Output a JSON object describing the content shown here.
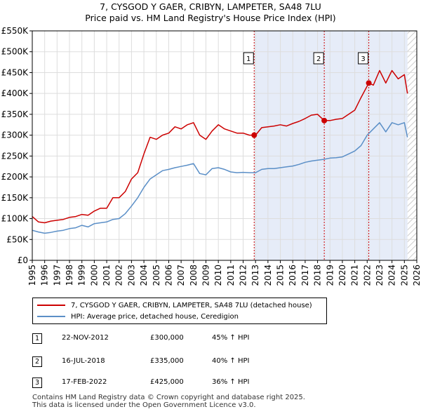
{
  "page": {
    "title_line1": "7, CYSGOD Y GAER, CRIBYN, LAMPETER, SA48 7LU",
    "title_line2": "Price paid vs. HM Land Registry's House Price Index (HPI)",
    "footer_line1": "Contains HM Land Registry data © Crown copyright and database right 2025.",
    "footer_line2": "This data is licensed under the Open Government Licence v3.0."
  },
  "colors": {
    "property": "#cc0000",
    "hpi": "#5b8fc7",
    "shade": "#e6ecf8",
    "grid": "#dddddd",
    "hatch": "#bbbbbb"
  },
  "legend": {
    "property_label": "7, CYSGOD Y GAER, CRIBYN, LAMPETER, SA48 7LU (detached house)",
    "hpi_label": "HPI: Average price, detached house, Ceredigion"
  },
  "sales": [
    {
      "num": "1",
      "date": "22-NOV-2012",
      "price": "£300,000",
      "hpi": "45% ↑ HPI"
    },
    {
      "num": "2",
      "date": "16-JUL-2018",
      "price": "£335,000",
      "hpi": "40% ↑ HPI"
    },
    {
      "num": "3",
      "date": "17-FEB-2022",
      "price": "£425,000",
      "hpi": "36% ↑ HPI"
    }
  ],
  "chart_data": {
    "type": "line",
    "title": "7, CYSGOD Y GAER, CRIBYN, LAMPETER, SA48 7LU — Price paid vs. HM Land Registry's House Price Index (HPI)",
    "xlabel": "",
    "ylabel": "",
    "xlim": [
      1995,
      2026
    ],
    "ylim": [
      0,
      550000
    ],
    "x_ticks": [
      1995,
      1996,
      1997,
      1998,
      1999,
      2000,
      2001,
      2002,
      2003,
      2004,
      2005,
      2006,
      2007,
      2008,
      2009,
      2010,
      2011,
      2012,
      2013,
      2014,
      2015,
      2016,
      2017,
      2018,
      2019,
      2020,
      2021,
      2022,
      2023,
      2024,
      2025,
      2026
    ],
    "y_ticks": [
      0,
      50000,
      100000,
      150000,
      200000,
      250000,
      300000,
      350000,
      400000,
      450000,
      500000,
      550000
    ],
    "y_tick_labels": [
      "£0",
      "£50K",
      "£100K",
      "£150K",
      "£200K",
      "£250K",
      "£300K",
      "£350K",
      "£400K",
      "£450K",
      "£500K",
      "£550K"
    ],
    "shaded_span": [
      2012.9,
      2025.25
    ],
    "hatched_from": 2025.25,
    "sale_markers": [
      {
        "label": "1",
        "x": 2012.89,
        "y": 300000
      },
      {
        "label": "2",
        "x": 2018.54,
        "y": 335000
      },
      {
        "label": "3",
        "x": 2022.13,
        "y": 425000
      }
    ],
    "series": [
      {
        "name": "7, CYSGOD Y GAER, CRIBYN, LAMPETER, SA48 7LU (detached house)",
        "x": [
          1995.0,
          1995.5,
          1996.0,
          1996.5,
          1997.0,
          1997.5,
          1998.0,
          1998.5,
          1999.0,
          1999.5,
          2000.0,
          2000.5,
          2001.0,
          2001.5,
          2002.0,
          2002.5,
          2003.0,
          2003.5,
          2004.0,
          2004.5,
          2005.0,
          2005.5,
          2006.0,
          2006.5,
          2007.0,
          2007.5,
          2008.0,
          2008.5,
          2009.0,
          2009.5,
          2010.0,
          2010.5,
          2011.0,
          2011.5,
          2012.0,
          2012.5,
          2012.89,
          2013.0,
          2013.5,
          2014.0,
          2014.5,
          2015.0,
          2015.5,
          2016.0,
          2016.5,
          2017.0,
          2017.5,
          2018.0,
          2018.54,
          2019.0,
          2019.5,
          2020.0,
          2020.5,
          2021.0,
          2021.5,
          2022.13,
          2022.5,
          2023.0,
          2023.5,
          2024.0,
          2024.5,
          2025.0,
          2025.25
        ],
        "values": [
          105000,
          92000,
          90000,
          94000,
          96000,
          98000,
          103000,
          105000,
          110000,
          108000,
          118000,
          125000,
          125000,
          150000,
          150000,
          165000,
          195000,
          210000,
          255000,
          295000,
          290000,
          300000,
          305000,
          320000,
          315000,
          325000,
          330000,
          300000,
          290000,
          310000,
          325000,
          315000,
          310000,
          305000,
          305000,
          300000,
          300000,
          300000,
          318000,
          320000,
          322000,
          325000,
          322000,
          328000,
          333000,
          340000,
          348000,
          350000,
          335000,
          335000,
          338000,
          340000,
          350000,
          360000,
          390000,
          425000,
          420000,
          455000,
          425000,
          455000,
          435000,
          445000,
          400000
        ]
      },
      {
        "name": "HPI: Average price, detached house, Ceredigion",
        "x": [
          1995.0,
          1995.5,
          1996.0,
          1996.5,
          1997.0,
          1997.5,
          1998.0,
          1998.5,
          1999.0,
          1999.5,
          2000.0,
          2000.5,
          2001.0,
          2001.5,
          2002.0,
          2002.5,
          2003.0,
          2003.5,
          2004.0,
          2004.5,
          2005.0,
          2005.5,
          2006.0,
          2006.5,
          2007.0,
          2007.5,
          2008.0,
          2008.5,
          2009.0,
          2009.5,
          2010.0,
          2010.5,
          2011.0,
          2011.5,
          2012.0,
          2012.5,
          2013.0,
          2013.5,
          2014.0,
          2014.5,
          2015.0,
          2015.5,
          2016.0,
          2016.5,
          2017.0,
          2017.5,
          2018.0,
          2018.5,
          2019.0,
          2019.5,
          2020.0,
          2020.5,
          2021.0,
          2021.5,
          2022.0,
          2022.5,
          2023.0,
          2023.5,
          2024.0,
          2024.5,
          2025.0,
          2025.25
        ],
        "values": [
          72000,
          68000,
          65000,
          67000,
          70000,
          72000,
          76000,
          78000,
          84000,
          80000,
          88000,
          90000,
          92000,
          98000,
          100000,
          112000,
          130000,
          150000,
          175000,
          195000,
          205000,
          215000,
          218000,
          222000,
          225000,
          228000,
          232000,
          208000,
          205000,
          220000,
          222000,
          218000,
          212000,
          210000,
          211000,
          210000,
          210000,
          218000,
          220000,
          220000,
          222000,
          224000,
          226000,
          230000,
          235000,
          238000,
          240000,
          242000,
          245000,
          246000,
          248000,
          255000,
          262000,
          275000,
          300000,
          315000,
          330000,
          308000,
          330000,
          325000,
          330000,
          295000
        ]
      }
    ]
  }
}
